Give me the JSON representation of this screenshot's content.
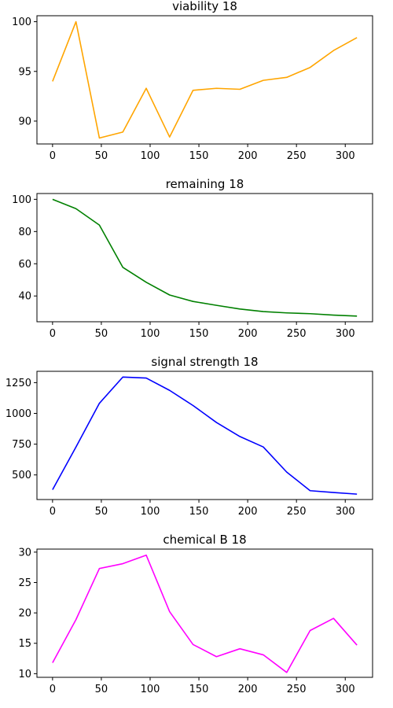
{
  "chart_data": [
    {
      "type": "line",
      "title": "viability 18",
      "color": "#FFA500",
      "x": [
        0,
        24,
        48,
        72,
        96,
        120,
        144,
        168,
        192,
        216,
        240,
        264,
        288,
        312
      ],
      "values": [
        94.0,
        100.0,
        88.3,
        88.9,
        93.3,
        88.4,
        93.1,
        93.3,
        93.2,
        94.1,
        94.4,
        95.4,
        97.1,
        98.4
      ],
      "xlim": [
        -16,
        328
      ],
      "ylim": [
        87.7,
        100.6
      ],
      "xticks": [
        0,
        50,
        100,
        150,
        200,
        250,
        300
      ],
      "yticks": [
        90,
        95,
        100
      ]
    },
    {
      "type": "line",
      "title": "remaining 18",
      "color": "#008000",
      "x": [
        0,
        24,
        48,
        72,
        96,
        120,
        144,
        168,
        192,
        216,
        240,
        264,
        288,
        312
      ],
      "values": [
        100.0,
        94.2,
        84.0,
        57.8,
        48.5,
        40.6,
        36.6,
        34.2,
        31.9,
        30.3,
        29.5,
        29.0,
        28.1,
        27.5
      ],
      "xlim": [
        -16,
        328
      ],
      "ylim": [
        24.0,
        103.6
      ],
      "xticks": [
        0,
        50,
        100,
        150,
        200,
        250,
        300
      ],
      "yticks": [
        40,
        60,
        80,
        100
      ]
    },
    {
      "type": "line",
      "title": "signal strength 18",
      "color": "#0000FF",
      "x": [
        0,
        24,
        48,
        72,
        96,
        120,
        144,
        168,
        192,
        216,
        240,
        264,
        288,
        312
      ],
      "values": [
        380,
        727,
        1082,
        1295,
        1287,
        1187,
        1064,
        926,
        812,
        727,
        523,
        372,
        357,
        344
      ],
      "xlim": [
        -16,
        328
      ],
      "ylim": [
        300,
        1342
      ],
      "xticks": [
        0,
        50,
        100,
        150,
        200,
        250,
        300
      ],
      "yticks": [
        500,
        750,
        1000,
        1250
      ]
    },
    {
      "type": "line",
      "title": "chemical B 18",
      "color": "#FF00FF",
      "x": [
        0,
        24,
        48,
        72,
        96,
        120,
        144,
        168,
        192,
        216,
        240,
        264,
        288,
        312
      ],
      "values": [
        11.8,
        18.9,
        27.3,
        28.1,
        29.5,
        20.2,
        14.8,
        12.8,
        14.1,
        13.1,
        10.2,
        17.1,
        19.1,
        14.7
      ],
      "xlim": [
        -16,
        328
      ],
      "ylim": [
        9.4,
        30.5
      ],
      "xticks": [
        0,
        50,
        100,
        150,
        200,
        250,
        300
      ],
      "yticks": [
        10,
        15,
        20,
        25,
        30
      ]
    }
  ]
}
